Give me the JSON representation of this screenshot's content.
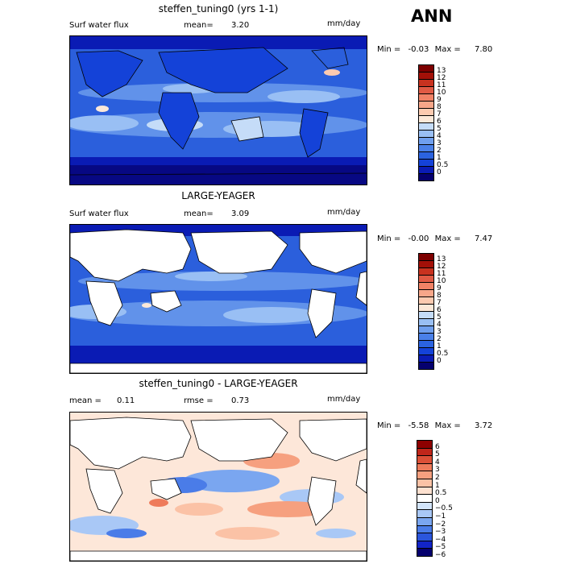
{
  "season": "ANN",
  "units": "mm/day",
  "panels": [
    {
      "title": "steffen_tuning0 (yrs 1-1)",
      "left_label": "Surf water flux",
      "mean_label": "mean=",
      "mean_value": "3.20",
      "units": "mm/day",
      "min_label": "Min =",
      "min_value": "-0.03",
      "max_label": "Max =",
      "max_value": "7.80",
      "colorbar": {
        "colors": [
          "#05006e",
          "#0a1bb4",
          "#1442d8",
          "#2b63e0",
          "#4a80e8",
          "#6f9fee",
          "#99bff4",
          "#c5dcf8",
          "#fce8d8",
          "#fccab0",
          "#f7a689",
          "#f08266",
          "#e05a44",
          "#c8321f",
          "#a31008",
          "#7d0000"
        ],
        "ticks": [
          "13",
          "12",
          "11",
          "10",
          "9",
          "8",
          "7",
          "6",
          "5",
          "4",
          "3",
          "2",
          "1",
          "0.5",
          "0"
        ]
      }
    },
    {
      "title": "LARGE-YEAGER",
      "left_label": "Surf water flux",
      "mean_label": "mean=",
      "mean_value": "3.09",
      "units": "mm/day",
      "min_label": "Min =",
      "min_value": "-0.00",
      "max_label": "Max =",
      "max_value": "7.47",
      "colorbar": {
        "colors": [
          "#05006e",
          "#0a1bb4",
          "#1442d8",
          "#2b63e0",
          "#4a80e8",
          "#6f9fee",
          "#99bff4",
          "#c5dcf8",
          "#fce8d8",
          "#fccab0",
          "#f7a689",
          "#f08266",
          "#e05a44",
          "#c8321f",
          "#a31008",
          "#7d0000"
        ],
        "ticks": [
          "13",
          "12",
          "11",
          "10",
          "9",
          "8",
          "7",
          "6",
          "5",
          "4",
          "3",
          "2",
          "1",
          "0.5",
          "0"
        ]
      }
    },
    {
      "title": "steffen_tuning0 - LARGE-YEAGER",
      "left_label": "mean =",
      "left_value": "0.11",
      "mean_label": "rmse =",
      "mean_value": "0.73",
      "units": "mm/day",
      "min_label": "Min =",
      "min_value": "-5.58",
      "max_label": "Max =",
      "max_value": "3.72",
      "colorbar": {
        "colors": [
          "#05006e",
          "#1224c8",
          "#2b56dc",
          "#4a7ce8",
          "#7aa6f0",
          "#a9c8f6",
          "#d2e4fa",
          "#ffffff",
          "#fde1d0",
          "#fbc2a6",
          "#f6a07f",
          "#ee7b5b",
          "#dc5037",
          "#c0261a",
          "#8e0000"
        ],
        "ticks": [
          "6",
          "5",
          "4",
          "3",
          "2",
          "1",
          "0.5",
          "0",
          "−0.5",
          "−1",
          "−2",
          "−3",
          "−4",
          "−5",
          "−6"
        ]
      }
    }
  ]
}
